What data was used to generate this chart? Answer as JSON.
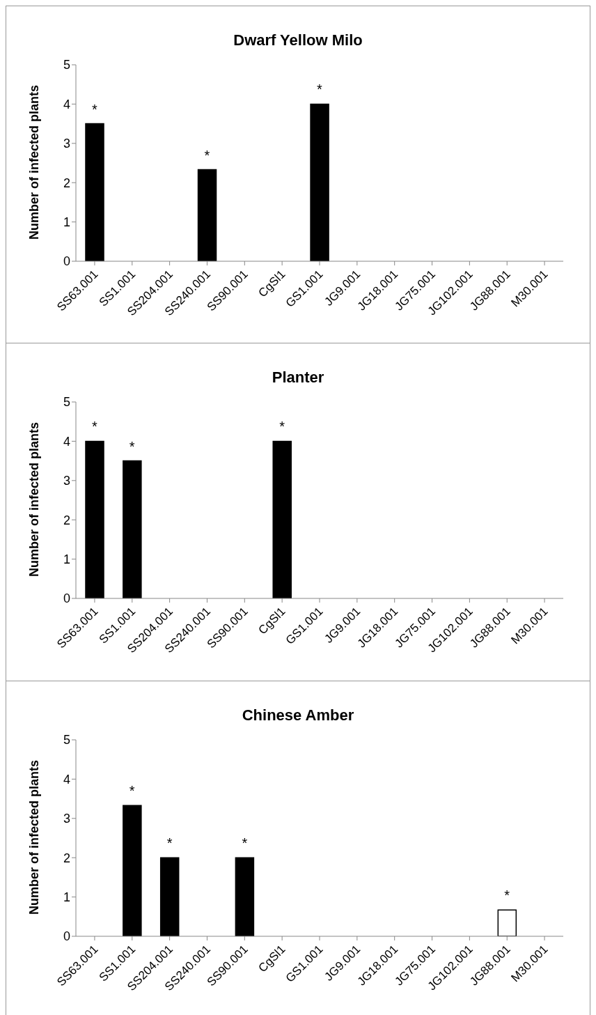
{
  "chart_data": [
    {
      "type": "bar",
      "title": "Dwarf Yellow Milo",
      "ylabel": "Number of infected plants",
      "categories": [
        "SS63.001",
        "SS1.001",
        "SS204.001",
        "SS240.001",
        "SS90.001",
        "CgSl1",
        "GS1.001",
        "JG9.001",
        "JG18.001",
        "JG75.001",
        "JG102.001",
        "JG88.001",
        "M30.001"
      ],
      "values": [
        3.5,
        0,
        0,
        2.33,
        0,
        0,
        4,
        0,
        0,
        0,
        0,
        0,
        0
      ],
      "colors": [
        "#000000",
        "#000000",
        "#000000",
        "#000000",
        "#000000",
        "#000000",
        "#000000",
        "#000000",
        "#000000",
        "#000000",
        "#000000",
        "#000000",
        "#000000"
      ],
      "ylim": [
        0,
        5
      ],
      "yticks": [
        0,
        1,
        2,
        3,
        4,
        5
      ],
      "grid": false,
      "legend": false,
      "annotations": [
        {
          "text": "*",
          "x": "SS63.001",
          "y": 3.5
        },
        {
          "text": "*",
          "x": "SS240.001",
          "y": 2.33
        },
        {
          "text": "*",
          "x": "GS1.001",
          "y": 4
        }
      ]
    },
    {
      "type": "bar",
      "title": "Planter",
      "ylabel": "Number of infected plants",
      "categories": [
        "SS63.001",
        "SS1.001",
        "SS204.001",
        "SS240.001",
        "SS90.001",
        "CgSl1",
        "GS1.001",
        "JG9.001",
        "JG18.001",
        "JG75.001",
        "JG102.001",
        "JG88.001",
        "M30.001"
      ],
      "values": [
        4,
        3.5,
        0,
        0,
        0,
        4,
        0,
        0,
        0,
        0,
        0,
        0,
        0
      ],
      "colors": [
        "#000000",
        "#000000",
        "#000000",
        "#000000",
        "#000000",
        "#000000",
        "#000000",
        "#000000",
        "#000000",
        "#000000",
        "#000000",
        "#000000",
        "#000000"
      ],
      "ylim": [
        0,
        5
      ],
      "yticks": [
        0,
        1,
        2,
        3,
        4,
        5
      ],
      "grid": false,
      "legend": false,
      "annotations": [
        {
          "text": "*",
          "x": "SS63.001",
          "y": 4
        },
        {
          "text": "*",
          "x": "SS1.001",
          "y": 3.5
        },
        {
          "text": "*",
          "x": "CgSl1",
          "y": 4
        }
      ]
    },
    {
      "type": "bar",
      "title": "Chinese Amber",
      "ylabel": "Number of infected plants",
      "categories": [
        "SS63.001",
        "SS1.001",
        "SS204.001",
        "SS240.001",
        "SS90.001",
        "CgSl1",
        "GS1.001",
        "JG9.001",
        "JG18.001",
        "JG75.001",
        "JG102.001",
        "JG88.001",
        "M30.001"
      ],
      "values": [
        0,
        3.33,
        2,
        0,
        2,
        0,
        0,
        0,
        0,
        0,
        0,
        0.67,
        0
      ],
      "colors": [
        "#000000",
        "#000000",
        "#000000",
        "#000000",
        "#000000",
        "#000000",
        "#000000",
        "#000000",
        "#000000",
        "#000000",
        "#000000",
        "#ffffff",
        "#000000"
      ],
      "ylim": [
        0,
        5
      ],
      "yticks": [
        0,
        1,
        2,
        3,
        4,
        5
      ],
      "grid": false,
      "legend": false,
      "annotations": [
        {
          "text": "*",
          "x": "SS1.001",
          "y": 3.33
        },
        {
          "text": "*",
          "x": "SS204.001",
          "y": 2
        },
        {
          "text": "*",
          "x": "SS90.001",
          "y": 2
        },
        {
          "text": "*",
          "x": "JG88.001",
          "y": 0.67
        }
      ]
    }
  ]
}
